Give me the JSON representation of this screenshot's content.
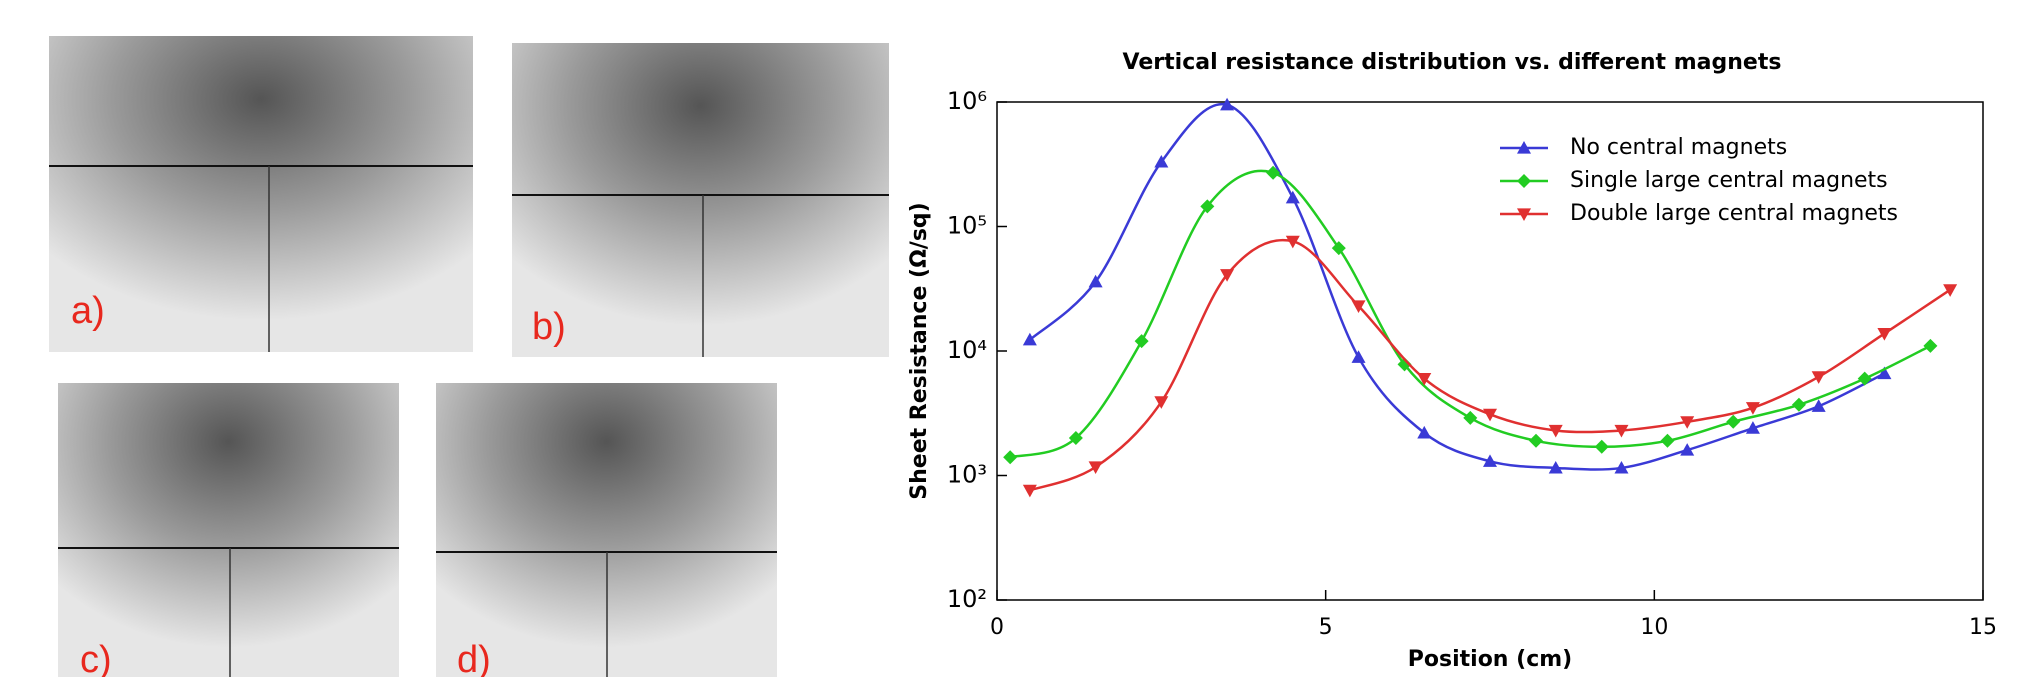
{
  "photo_labels": [
    "a)",
    "b)",
    "c)",
    "d)"
  ],
  "chart_data": {
    "type": "line",
    "title": "Vertical resistance distribution vs. different magnets",
    "xlabel": "Position  (cm)",
    "ylabel": "Sheet Resistance  (Ω/sq)",
    "xlim": [
      0,
      15
    ],
    "xticks": [
      0,
      5,
      10,
      15
    ],
    "ylim": [
      100,
      1000000
    ],
    "log_y": true,
    "yticks": [
      {
        "value": 100,
        "label": "10²"
      },
      {
        "value": 1000,
        "label": "10³"
      },
      {
        "value": 10000,
        "label": "10⁴"
      },
      {
        "value": 100000,
        "label": "10⁵"
      },
      {
        "value": 1000000,
        "label": "10⁶"
      }
    ],
    "legend": "upper right",
    "series": [
      {
        "name": "No central magnets",
        "color": "#3a3ad6",
        "marker": "triangle-up",
        "x": [
          0.5,
          1.5,
          2.5,
          3.5,
          4.5,
          5.5,
          6.5,
          7.5,
          8.5,
          9.5,
          10.5,
          11.5,
          12.5,
          13.5
        ],
        "values": [
          12300,
          36000,
          330000,
          950000,
          170000,
          8900,
          2200,
          1300,
          1150,
          1150,
          1600,
          2400,
          3600,
          6600
        ]
      },
      {
        "name": "Single large central magnets",
        "color": "#22cc22",
        "marker": "diamond",
        "x": [
          0.2,
          1.2,
          2.2,
          3.2,
          4.2,
          5.2,
          6.2,
          7.2,
          8.2,
          9.2,
          10.2,
          11.2,
          12.2,
          13.2,
          14.2
        ],
        "values": [
          1400,
          2000,
          12000,
          145000,
          270000,
          67000,
          7800,
          2900,
          1900,
          1700,
          1900,
          2700,
          3700,
          6000,
          11000
        ]
      },
      {
        "name": "Double large central magnets",
        "color": "#e03030",
        "marker": "triangle-down",
        "x": [
          0.5,
          1.5,
          2.5,
          3.5,
          4.5,
          5.5,
          6.5,
          7.5,
          8.5,
          9.5,
          10.5,
          11.5,
          12.5,
          13.5,
          14.5
        ],
        "values": [
          760,
          1170,
          3900,
          41000,
          76000,
          23000,
          6000,
          3100,
          2300,
          2300,
          2700,
          3500,
          6200,
          13800,
          31000
        ]
      }
    ]
  }
}
